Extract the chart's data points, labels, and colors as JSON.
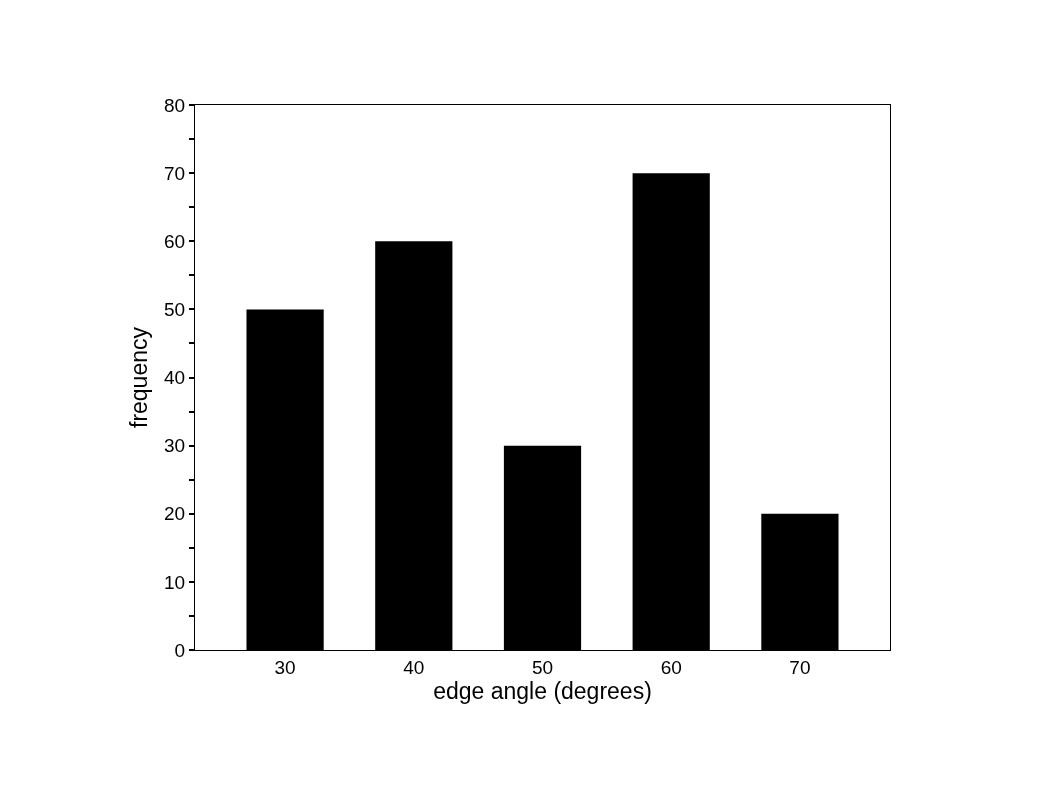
{
  "chart_data": {
    "type": "bar",
    "xlabel": "edge angle (degrees)",
    "ylabel": "frequency",
    "categories": [
      "30",
      "40",
      "50",
      "60",
      "70"
    ],
    "values": [
      50,
      60,
      30,
      70,
      20
    ],
    "color": "#000000",
    "ylim": [
      0,
      80
    ],
    "yticks": [
      0,
      {
        "value": 5,
        "label": null
      },
      10,
      {
        "value": 15,
        "label": null
      },
      20,
      {
        "value": 25,
        "label": null
      },
      30,
      {
        "value": 35,
        "label": null
      },
      40,
      {
        "value": 45,
        "label": null
      },
      50,
      {
        "value": 55,
        "label": null
      },
      60,
      {
        "value": 65,
        "label": null
      },
      70,
      {
        "value": 75,
        "label": null
      },
      80
    ],
    "data_labels": false
  }
}
